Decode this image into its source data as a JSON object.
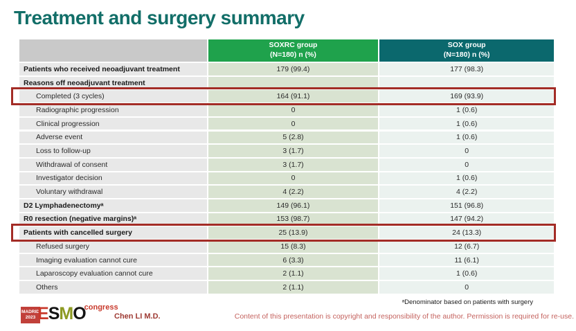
{
  "slide": {
    "title": "Treatment and surgery summary",
    "author": "Chen LI M.D.",
    "footnote": "ᵃDenominator based on patients with surgery",
    "copyright": "Content of this presentation is copyright and responsibility of the author.  Permission is required for re-use."
  },
  "logo": {
    "city": "MADRID",
    "year": "2023",
    "letters": [
      "E",
      "S",
      "M",
      "O"
    ],
    "congress": "congress"
  },
  "colors": {
    "title_teal": "#126E68",
    "soxrc_header_green": "#1FA24C",
    "sox_header_teal": "#0B686D",
    "highlight_box_red": "#A32C26",
    "soxrc_cell_green": "#D9E3D1",
    "sox_cell_teal": "#EBF2EF",
    "label_cell_gray": "#E8E8E8"
  },
  "table": {
    "headers": {
      "label_column": "",
      "soxrc_line1": "SOXRC group",
      "soxrc_line2": "(N=180)  n (%)",
      "sox_line1": "SOX group",
      "sox_line2": "(N=180)  n (%)"
    },
    "rows": [
      {
        "label": "Patients who received neoadjuvant treatment",
        "bold": true,
        "indent": false,
        "soxrc": "179 (99.4)",
        "sox": "177 (98.3)",
        "boxed": false
      },
      {
        "label": "Reasons off neoadjuvant treatment",
        "bold": true,
        "indent": false,
        "soxrc": "",
        "sox": "",
        "boxed": false
      },
      {
        "label": "Completed (3 cycles)",
        "bold": false,
        "indent": true,
        "soxrc": "164 (91.1)",
        "sox": "169 (93.9)",
        "boxed": true
      },
      {
        "label": "Radiographic progression",
        "bold": false,
        "indent": true,
        "soxrc": "0",
        "sox": "1 (0.6)",
        "boxed": false
      },
      {
        "label": "Clinical progression",
        "bold": false,
        "indent": true,
        "soxrc": "0",
        "sox": "1 (0.6)",
        "boxed": false
      },
      {
        "label": "Adverse event",
        "bold": false,
        "indent": true,
        "soxrc": "5 (2.8)",
        "sox": "1 (0.6)",
        "boxed": false
      },
      {
        "label": "Loss to follow-up",
        "bold": false,
        "indent": true,
        "soxrc": "3 (1.7)",
        "sox": "0",
        "boxed": false
      },
      {
        "label": "Withdrawal of consent",
        "bold": false,
        "indent": true,
        "soxrc": "3 (1.7)",
        "sox": "0",
        "boxed": false
      },
      {
        "label": "Investigator decision",
        "bold": false,
        "indent": true,
        "soxrc": "0",
        "sox": "1 (0.6)",
        "boxed": false
      },
      {
        "label": "Voluntary withdrawal",
        "bold": false,
        "indent": true,
        "soxrc": "4 (2.2)",
        "sox": "4 (2.2)",
        "boxed": false
      },
      {
        "label": "D2 Lymphadenectomyᵃ",
        "bold": true,
        "indent": false,
        "soxrc": "149 (96.1)",
        "sox": "151 (96.8)",
        "boxed": false
      },
      {
        "label": "R0 resection (negative margins)ᵃ",
        "bold": true,
        "indent": false,
        "soxrc": "153 (98.7)",
        "sox": "147 (94.2)",
        "boxed": false
      },
      {
        "label": "Patients with cancelled surgery",
        "bold": true,
        "indent": false,
        "soxrc": "25 (13.9)",
        "sox": "24 (13.3)",
        "boxed": true
      },
      {
        "label": "Refused surgery",
        "bold": false,
        "indent": true,
        "soxrc": "15 (8.3)",
        "sox": "12 (6.7)",
        "boxed": false
      },
      {
        "label": "Imaging evaluation cannot cure",
        "bold": false,
        "indent": true,
        "soxrc": "6 (3.3)",
        "sox": "11 (6.1)",
        "boxed": false
      },
      {
        "label": "Laparoscopy evaluation cannot cure",
        "bold": false,
        "indent": true,
        "soxrc": "2 (1.1)",
        "sox": "1 (0.6)",
        "boxed": false
      },
      {
        "label": "Others",
        "bold": false,
        "indent": true,
        "soxrc": "2 (1.1)",
        "sox": "0",
        "boxed": false
      }
    ]
  }
}
